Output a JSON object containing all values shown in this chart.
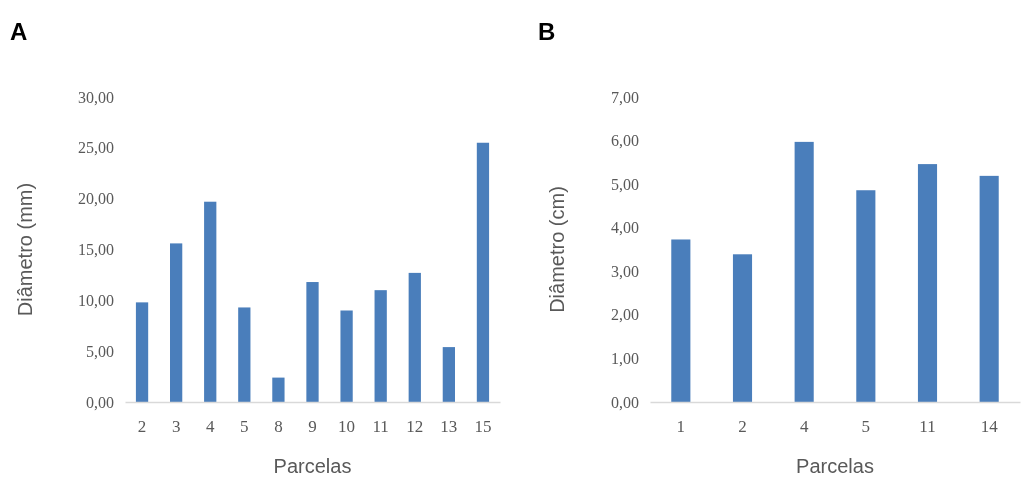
{
  "chart_data": [
    {
      "type": "bar",
      "title": "A",
      "xlabel": "Parcelas",
      "ylabel": "Diâmetro (mm)",
      "categories": [
        "2",
        "3",
        "4",
        "5",
        "8",
        "9",
        "10",
        "11",
        "12",
        "13",
        "15"
      ],
      "values": [
        9.8,
        15.6,
        19.7,
        9.3,
        2.4,
        11.8,
        9.0,
        11.0,
        12.7,
        5.4,
        25.5
      ],
      "color": "#4a7ebb",
      "ylim": [
        0,
        30
      ],
      "yticks": [
        {
          "value": 0,
          "label": "0,00"
        },
        {
          "value": 5,
          "label": "5,00"
        },
        {
          "value": 10,
          "label": "10,00"
        },
        {
          "value": 15,
          "label": "15,00"
        },
        {
          "value": 20,
          "label": "20,00"
        },
        {
          "value": 25,
          "label": "25,00"
        },
        {
          "value": 30,
          "label": "30,00"
        }
      ],
      "grid": false
    },
    {
      "type": "bar",
      "title": "B",
      "xlabel": "Parcelas",
      "ylabel": "Diâmetro (cm)",
      "categories": [
        "1",
        "2",
        "4",
        "5",
        "11",
        "14"
      ],
      "values": [
        3.73,
        3.39,
        5.97,
        4.86,
        5.46,
        5.19
      ],
      "color": "#4a7ebb",
      "ylim": [
        0,
        7
      ],
      "yticks": [
        {
          "value": 0,
          "label": "0,00"
        },
        {
          "value": 1,
          "label": "1,00"
        },
        {
          "value": 2,
          "label": "2,00"
        },
        {
          "value": 3,
          "label": "3,00"
        },
        {
          "value": 4,
          "label": "4,00"
        },
        {
          "value": 5,
          "label": "5,00"
        },
        {
          "value": 6,
          "label": "6,00"
        },
        {
          "value": 7,
          "label": "7,00"
        }
      ],
      "grid": false
    }
  ]
}
